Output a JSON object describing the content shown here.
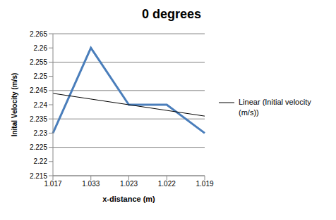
{
  "chart_data": {
    "type": "line",
    "title": "0 degrees",
    "x_label": "x-distance (m)",
    "y_label": "Inital Velocity (m/s)",
    "categories": [
      "1.017",
      "1.033",
      "1.023",
      "1.022",
      "1.019"
    ],
    "series": [
      {
        "color": "#4a7ebb",
        "values": [
          2.23,
          2.26,
          2.24,
          2.24,
          2.23
        ]
      },
      {
        "name": "Linear (Initial velocity (m/s))",
        "color": "#000000",
        "values": [
          2.244,
          2.242,
          2.24,
          2.238,
          2.236
        ]
      }
    ],
    "ylim": [
      2.215,
      2.265
    ],
    "yticks": [
      2.215,
      2.22,
      2.225,
      2.23,
      2.235,
      2.24,
      2.245,
      2.25,
      2.255,
      2.26,
      2.265
    ],
    "grid": true,
    "legend": "right"
  }
}
